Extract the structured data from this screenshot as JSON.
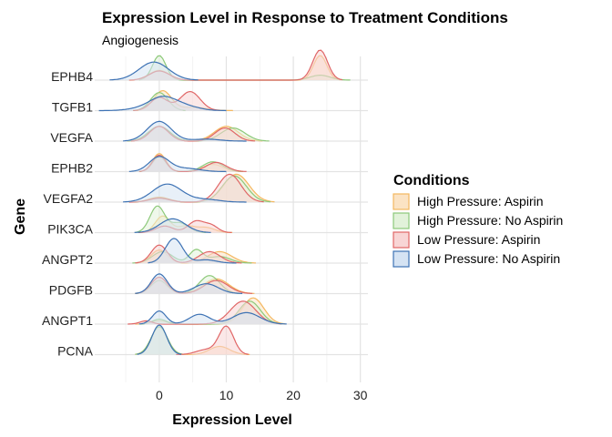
{
  "chart_data": {
    "type": "ridgeline",
    "title": "Expression Level in Response to Treatment Conditions",
    "subtitle": "Angiogenesis",
    "xlabel": "Expression Level",
    "ylabel": "Gene",
    "xlim": [
      -8,
      32
    ],
    "x_ticks": [
      0,
      10,
      20,
      30
    ],
    "grid": true,
    "legend": {
      "title": "Conditions",
      "position": "right"
    },
    "categories": [
      "EPHB4",
      "TGFB1",
      "VEGFA",
      "EPHB2",
      "VEGFA2",
      "PIK3CA",
      "ANGPT2",
      "PDGFB",
      "ANGPT1",
      "PCNA"
    ],
    "series": [
      {
        "name": "High Pressure: Aspirin",
        "line": "#f4b860",
        "fill": "#fbe3c4"
      },
      {
        "name": "High Pressure: No Aspirin",
        "line": "#8dc97a",
        "fill": "#e2f2da"
      },
      {
        "name": "Low Pressure: Aspirin",
        "line": "#e06666",
        "fill": "#f8d5d5"
      },
      {
        "name": "Low Pressure: No Aspirin",
        "line": "#3d72b4",
        "fill": "#d5e3f3"
      }
    ],
    "densities": {
      "EPHB4": [
        [
          [
            0,
            0.3,
            1.5
          ],
          [
            24,
            0.75,
            1.0
          ]
        ],
        [
          [
            0,
            0.75,
            1.0
          ],
          [
            24,
            0.15,
            1.5
          ]
        ],
        [
          [
            0,
            0.28,
            1.5
          ],
          [
            24,
            0.92,
            1.1
          ]
        ],
        [
          [
            -0.8,
            0.55,
            2.2
          ]
        ]
      ],
      "TGFB1": [
        [
          [
            0.5,
            0.6,
            1.3
          ],
          [
            5,
            0.1,
            2.0
          ]
        ],
        [
          [
            0,
            0.55,
            1.3
          ]
        ],
        [
          [
            0,
            0.4,
            1.3
          ],
          [
            4.6,
            0.58,
            1.5
          ]
        ],
        [
          [
            0.5,
            0.4,
            2.0
          ],
          [
            4,
            0.12,
            2.0
          ],
          [
            -3,
            0.05,
            2.0
          ]
        ]
      ],
      "VEGFA": [
        [
          [
            0,
            0.45,
            1.6
          ],
          [
            10,
            0.45,
            1.8
          ]
        ],
        [
          [
            0,
            0.45,
            1.6
          ],
          [
            11,
            0.4,
            1.8
          ]
        ],
        [
          [
            0,
            0.45,
            1.4
          ],
          [
            9.8,
            0.4,
            1.5
          ]
        ],
        [
          [
            0,
            0.6,
            1.8
          ],
          [
            7,
            0.06,
            2.0
          ]
        ]
      ],
      "EPHB2": [
        [
          [
            0,
            0.55,
            1.0
          ],
          [
            8,
            0.22,
            1.5
          ]
        ],
        [
          [
            0,
            0.45,
            1.0
          ],
          [
            8,
            0.3,
            1.5
          ]
        ],
        [
          [
            0,
            0.5,
            1.0
          ],
          [
            8.5,
            0.28,
            1.5
          ]
        ],
        [
          [
            0,
            0.45,
            1.5
          ],
          [
            4,
            0.1,
            2.0
          ]
        ]
      ],
      "VEGFA2": [
        [
          [
            0,
            0.15,
            1.5
          ],
          [
            11.5,
            0.85,
            1.9
          ]
        ],
        [
          [
            0,
            0.12,
            1.5
          ],
          [
            11.2,
            0.8,
            1.8
          ]
        ],
        [
          [
            0,
            0.12,
            1.5
          ],
          [
            10.5,
            0.85,
            1.7
          ]
        ],
        [
          [
            1.2,
            0.55,
            2.2
          ],
          [
            7,
            0.08,
            2.0
          ]
        ]
      ],
      "PIK3CA": [
        [
          [
            0.5,
            0.5,
            1.1
          ],
          [
            4,
            0.2,
            1.3
          ],
          [
            7,
            0.15,
            1.3
          ]
        ],
        [
          [
            -0.3,
            0.8,
            1.1
          ],
          [
            3,
            0.3,
            1.3
          ]
        ],
        [
          [
            0.8,
            0.2,
            1.3
          ],
          [
            5.5,
            0.35,
            1.2
          ],
          [
            7.8,
            0.2,
            1.0
          ]
        ],
        [
          [
            2.0,
            0.42,
            1.9
          ]
        ]
      ],
      "ANGPT2": [
        [
          [
            0,
            0.4,
            1.2
          ],
          [
            9,
            0.35,
            1.8
          ]
        ],
        [
          [
            0.5,
            0.35,
            1.5
          ],
          [
            5.5,
            0.4,
            1.0
          ],
          [
            9,
            0.2,
            1.6
          ]
        ],
        [
          [
            0,
            0.55,
            1.2
          ],
          [
            7.5,
            0.35,
            1.6
          ]
        ],
        [
          [
            2.2,
            0.75,
            1.3
          ],
          [
            7,
            0.1,
            1.5
          ]
        ]
      ],
      "PDGFB": [
        [
          [
            0,
            0.5,
            1.2
          ],
          [
            8.5,
            0.45,
            1.9
          ]
        ],
        [
          [
            0,
            0.4,
            1.2
          ],
          [
            7.5,
            0.55,
            1.5
          ]
        ],
        [
          [
            0,
            0.5,
            1.2
          ],
          [
            8.5,
            0.4,
            1.8
          ]
        ],
        [
          [
            0,
            0.6,
            1.2
          ],
          [
            7,
            0.3,
            1.8
          ]
        ]
      ],
      "ANGPT1": [
        [
          [
            0,
            0.1,
            1.2
          ],
          [
            14,
            0.8,
            1.6
          ]
        ],
        [
          [
            0,
            0.15,
            1.0
          ],
          [
            13.5,
            0.7,
            1.6
          ]
        ],
        [
          [
            -2,
            0.1,
            0.9
          ],
          [
            12.5,
            0.7,
            1.9
          ]
        ],
        [
          [
            0,
            0.4,
            1.0
          ],
          [
            6,
            0.3,
            1.5
          ],
          [
            13,
            0.35,
            2.0
          ]
        ]
      ],
      "PCNA": [
        [
          [
            0,
            0.85,
            1.2
          ],
          [
            9,
            0.25,
            1.5
          ]
        ],
        [
          [
            0,
            0.85,
            1.2
          ]
        ],
        [
          [
            10,
            0.85,
            1.1
          ],
          [
            7,
            0.15,
            1.5
          ]
        ],
        [
          [
            0,
            0.9,
            1.1
          ]
        ]
      ]
    }
  }
}
